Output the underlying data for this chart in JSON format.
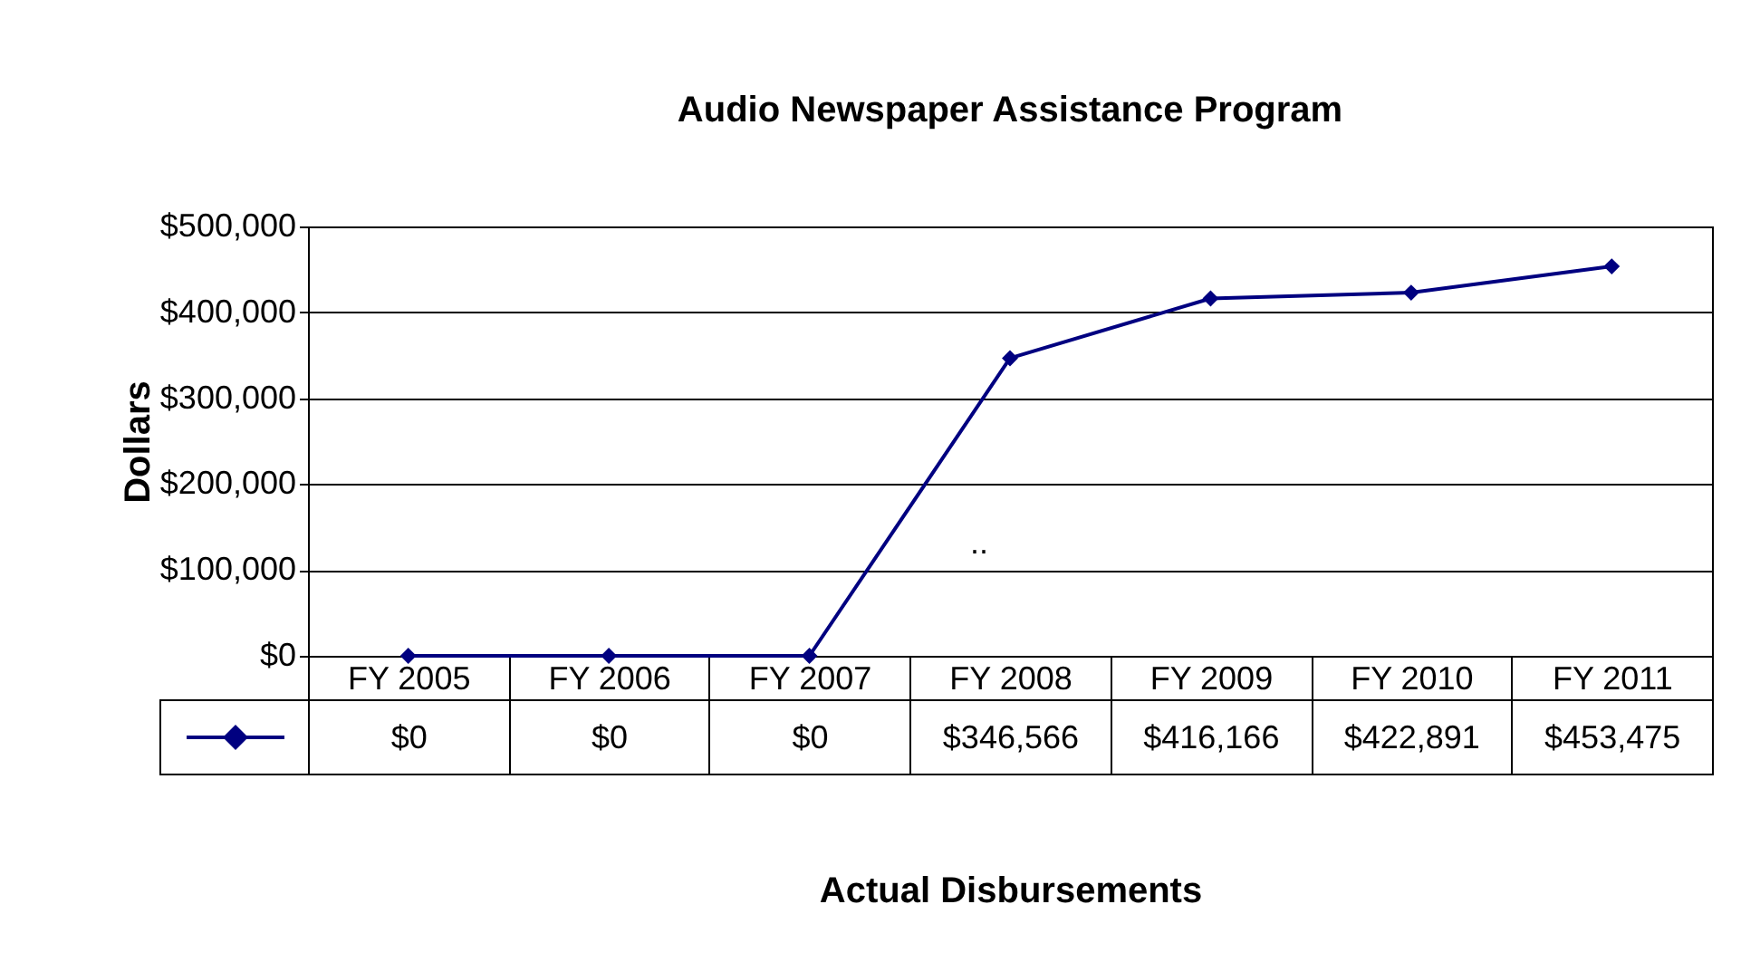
{
  "chart_data": {
    "type": "line",
    "title": "Audio Newspaper Assistance Program",
    "xlabel": "Actual Disbursements",
    "ylabel": "Dollars",
    "categories": [
      "FY 2005",
      "FY 2006",
      "FY 2007",
      "FY 2008",
      "FY 2009",
      "FY 2010",
      "FY 2011"
    ],
    "series": [
      {
        "color": "#000080",
        "values": [
          0,
          0,
          0,
          346566,
          416166,
          422891,
          453475
        ],
        "value_labels": [
          "$0",
          "$0",
          "$0",
          "$346,566",
          "$416,166",
          "$422,891",
          "$453,475"
        ]
      }
    ],
    "ylim": [
      0,
      500000
    ],
    "yticks": [
      {
        "value": 0,
        "label": "$0"
      },
      {
        "value": 100000,
        "label": "$100,000"
      },
      {
        "value": 200000,
        "label": "$200,000"
      },
      {
        "value": 300000,
        "label": "$300,000"
      },
      {
        "value": 400000,
        "label": "$400,000"
      },
      {
        "value": 500000,
        "label": "$500,000"
      }
    ],
    "annotations": [
      ".."
    ],
    "grid": "y",
    "marker": "diamond",
    "line_style": "solid"
  }
}
